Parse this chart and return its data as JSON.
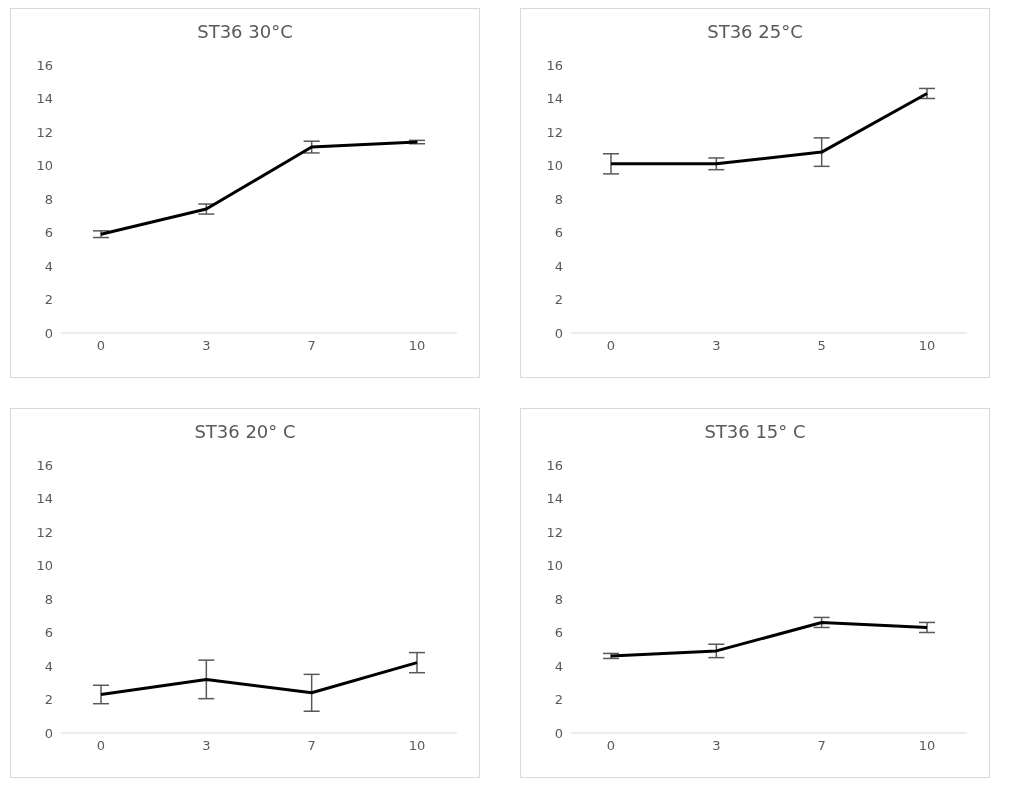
{
  "chart_data": [
    {
      "type": "line",
      "title": "ST36 30°C",
      "categories": [
        "0",
        "3",
        "7",
        "10"
      ],
      "series": [
        {
          "color": "#000000",
          "values": [
            5.9,
            7.4,
            11.1,
            11.4
          ],
          "errors": [
            0.2,
            0.3,
            0.35,
            0.1
          ]
        }
      ],
      "ylim": [
        0,
        16
      ],
      "yticks": [
        0,
        2,
        4,
        6,
        8,
        10,
        12,
        14,
        16
      ],
      "grid": false,
      "legend": false,
      "marker": "none"
    },
    {
      "type": "line",
      "title": "ST36 25°C",
      "categories": [
        "0",
        "3",
        "5",
        "10"
      ],
      "series": [
        {
          "color": "#000000",
          "values": [
            10.1,
            10.1,
            10.8,
            14.3
          ],
          "errors": [
            0.6,
            0.35,
            0.85,
            0.3
          ]
        }
      ],
      "ylim": [
        0,
        16
      ],
      "yticks": [
        0,
        2,
        4,
        6,
        8,
        10,
        12,
        14,
        16
      ],
      "grid": false,
      "legend": false,
      "marker": "none"
    },
    {
      "type": "line",
      "title": "ST36 20° C",
      "categories": [
        "0",
        "3",
        "7",
        "10"
      ],
      "series": [
        {
          "color": "#000000",
          "values": [
            2.3,
            3.2,
            2.4,
            4.2
          ],
          "errors": [
            0.55,
            1.15,
            1.1,
            0.6
          ]
        }
      ],
      "ylim": [
        0,
        16
      ],
      "yticks": [
        0,
        2,
        4,
        6,
        8,
        10,
        12,
        14,
        16
      ],
      "grid": false,
      "legend": false,
      "marker": "none"
    },
    {
      "type": "line",
      "title": "ST36 15° C",
      "categories": [
        "0",
        "3",
        "7",
        "10"
      ],
      "series": [
        {
          "color": "#000000",
          "values": [
            4.6,
            4.9,
            6.6,
            6.3
          ],
          "errors": [
            0.15,
            0.4,
            0.3,
            0.3
          ]
        }
      ],
      "ylim": [
        0,
        16
      ],
      "yticks": [
        0,
        2,
        4,
        6,
        8,
        10,
        12,
        14,
        16
      ],
      "grid": false,
      "legend": false,
      "marker": "none"
    }
  ]
}
